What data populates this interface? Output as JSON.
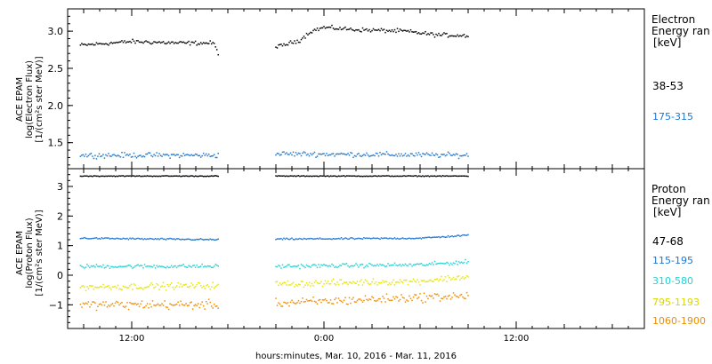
{
  "figure": {
    "time_label": "hours:minutes, Mar. 10, 2016 - Mar. 11, 2016"
  },
  "chart_data": [
    {
      "type": "scatter",
      "panel": "electron",
      "ylabel": [
        "ACE EPAM",
        "log(Electron Flux)",
        "[1/(cm²s ster MeV)]"
      ],
      "ylim": [
        1.15,
        3.3
      ],
      "yticks": [
        1.5,
        2.0,
        2.5,
        3.0
      ],
      "ytick_labels": [
        "1.5",
        "2.0",
        "2.5",
        "3.0"
      ],
      "x_data_gaps": [
        [
          -6.6,
          6.5
        ]
      ],
      "xlim": [
        -16.0,
        20.0
      ],
      "xticks": [
        -12,
        0,
        12
      ],
      "xtick_labels": [
        "12:00",
        "0:00",
        "12:00"
      ],
      "xlabel": "hours:minutes, Mar. 10, 2016 - Mar. 11, 2016",
      "legend_title": [
        "Electron",
        "Energy ran",
        "[keV]"
      ],
      "series": [
        {
          "name": "38-53",
          "color": "#000000",
          "segments": [
            {
              "x_start": -15.2,
              "x_end": -6.6,
              "keypoints": [
                [
                  -15.2,
                  2.81
                ],
                [
                  -12.0,
                  2.86
                ],
                [
                  -9.0,
                  2.84
                ],
                [
                  -6.9,
                  2.84
                ],
                [
                  -6.6,
                  2.71
                ]
              ]
            },
            {
              "x_start": -3.0,
              "x_end": 9.0,
              "keypoints": [
                [
                  -3.0,
                  2.78
                ],
                [
                  -1.5,
                  2.88
                ],
                [
                  -0.8,
                  3.0
                ],
                [
                  0.0,
                  3.05
                ],
                [
                  2.0,
                  3.02
                ],
                [
                  5.0,
                  3.0
                ],
                [
                  7.0,
                  2.95
                ],
                [
                  9.0,
                  2.94
                ]
              ]
            }
          ],
          "noise": 0.04
        },
        {
          "name": "175-315",
          "color": "#1f77d0",
          "segments": [
            {
              "x_start": -15.2,
              "x_end": -6.6,
              "keypoints": [
                [
                  -15.2,
                  1.33
                ],
                [
                  -6.6,
                  1.33
                ]
              ]
            },
            {
              "x_start": -3.0,
              "x_end": 9.0,
              "keypoints": [
                [
                  -3.0,
                  1.35
                ],
                [
                  9.0,
                  1.33
                ]
              ]
            }
          ],
          "noise": 0.05
        }
      ]
    },
    {
      "type": "scatter",
      "panel": "proton",
      "ylabel": [
        "ACE EPAM",
        "log(Proton Flux)",
        "[1/(cm²s ster MeV)]"
      ],
      "ylim": [
        -1.8,
        3.6
      ],
      "yticks": [
        -1,
        0,
        1,
        2,
        3
      ],
      "ytick_labels": [
        "−1",
        "0",
        "1",
        "2",
        "3"
      ],
      "x_data_gaps": [
        [
          -6.6,
          6.5
        ]
      ],
      "xlim": [
        -16.0,
        20.0
      ],
      "xticks": [
        -12,
        0,
        12
      ],
      "xtick_labels": [
        "12:00",
        "0:00",
        "12:00"
      ],
      "xlabel": "hours:minutes, Mar. 10, 2016 - Mar. 11, 2016",
      "legend_title": [
        "Proton",
        "Energy ran",
        "[keV]"
      ],
      "series": [
        {
          "name": "47-68",
          "color": "#000000",
          "segments": [
            {
              "x_start": -15.2,
              "x_end": -6.6,
              "keypoints": [
                [
                  -15.2,
                  3.35
                ],
                [
                  -6.6,
                  3.35
                ]
              ]
            },
            {
              "x_start": -3.0,
              "x_end": 9.0,
              "keypoints": [
                [
                  -3.0,
                  3.35
                ],
                [
                  9.0,
                  3.35
                ]
              ]
            }
          ],
          "noise": 0.02
        },
        {
          "name": "115-195",
          "color": "#1f77d0",
          "segments": [
            {
              "x_start": -15.2,
              "x_end": -6.6,
              "keypoints": [
                [
                  -15.2,
                  1.25
                ],
                [
                  -6.6,
                  1.2
                ]
              ]
            },
            {
              "x_start": -3.0,
              "x_end": 9.0,
              "keypoints": [
                [
                  -3.0,
                  1.22
                ],
                [
                  6.0,
                  1.25
                ],
                [
                  9.0,
                  1.35
                ]
              ]
            }
          ],
          "noise": 0.04
        },
        {
          "name": "310-580",
          "color": "#22d3d3",
          "segments": [
            {
              "x_start": -15.2,
              "x_end": -6.6,
              "keypoints": [
                [
                  -15.2,
                  0.3
                ],
                [
                  -6.6,
                  0.3
                ]
              ]
            },
            {
              "x_start": -3.0,
              "x_end": 9.0,
              "keypoints": [
                [
                  -3.0,
                  0.3
                ],
                [
                  6.0,
                  0.35
                ],
                [
                  9.0,
                  0.45
                ]
              ]
            }
          ],
          "noise": 0.1
        },
        {
          "name": "795-1193",
          "color": "#e6e600",
          "segments": [
            {
              "x_start": -15.2,
              "x_end": -6.6,
              "keypoints": [
                [
                  -15.2,
                  -0.4
                ],
                [
                  -6.6,
                  -0.35
                ]
              ]
            },
            {
              "x_start": -3.0,
              "x_end": 9.0,
              "keypoints": [
                [
                  -3.0,
                  -0.3
                ],
                [
                  6.0,
                  -0.2
                ],
                [
                  9.0,
                  -0.05
                ]
              ]
            }
          ],
          "noise": 0.16
        },
        {
          "name": "1060-1900",
          "color": "#f08c00",
          "segments": [
            {
              "x_start": -15.2,
              "x_end": -6.6,
              "keypoints": [
                [
                  -15.2,
                  -1.0
                ],
                [
                  -6.6,
                  -1.0
                ]
              ]
            },
            {
              "x_start": -3.0,
              "x_end": 9.0,
              "keypoints": [
                [
                  -3.0,
                  -0.95
                ],
                [
                  6.0,
                  -0.75
                ],
                [
                  9.0,
                  -0.7
                ]
              ]
            }
          ],
          "noise": 0.22
        }
      ]
    }
  ]
}
